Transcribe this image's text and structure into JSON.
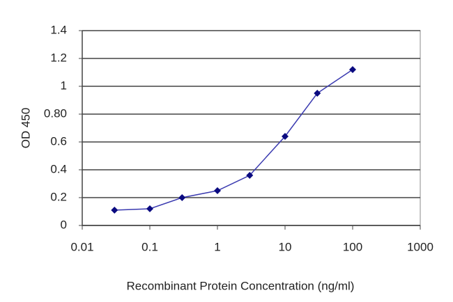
{
  "chart_data": {
    "type": "line",
    "x_label": "Recombinant Protein Concentration (ng/ml)",
    "y_label": "OD 450",
    "x": [
      0.03,
      0.1,
      0.3,
      1,
      3,
      10,
      30,
      100
    ],
    "series": [
      {
        "color": "#3a3ab0",
        "marker_color": "#0a0a80",
        "values": [
          0.11,
          0.12,
          0.2,
          0.25,
          0.36,
          0.64,
          0.95,
          1.12
        ]
      }
    ],
    "xlog": true,
    "xlim": [
      0.01,
      1000
    ],
    "xticks": [
      0.01,
      0.1,
      1,
      10,
      100,
      1000
    ],
    "ylim": [
      0,
      1.4
    ],
    "yticks": [
      0,
      0.2,
      0.4,
      0.6,
      {
        "value": 0.8,
        "label": "0.80"
      },
      1,
      1.2,
      1.4
    ],
    "grid": true
  }
}
